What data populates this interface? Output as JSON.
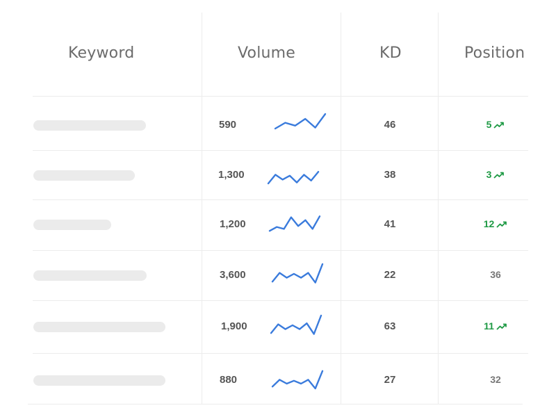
{
  "table": {
    "columns": {
      "keyword": "Keyword",
      "volume": "Volume",
      "kd": "KD",
      "position": "Position"
    },
    "rows": [
      {
        "volume": "590",
        "trend": [
          0.25,
          0.55,
          0.4,
          0.75,
          0.3,
          1.0
        ],
        "kd": "46",
        "position": "5",
        "position_trend": "up",
        "keyword_bar_fraction": 0.85
      },
      {
        "volume": "1,300",
        "trend": [
          0.0,
          0.45,
          0.2,
          0.4,
          0.05,
          0.45,
          0.15,
          0.6
        ],
        "kd": "38",
        "position": "3",
        "position_trend": "up",
        "keyword_bar_fraction": 0.77
      },
      {
        "volume": "1,200",
        "trend": [
          0.1,
          0.3,
          0.2,
          0.8,
          0.35,
          0.65,
          0.2,
          0.85
        ],
        "kd": "41",
        "position": "12",
        "position_trend": "up",
        "keyword_bar_fraction": 0.59
      },
      {
        "volume": "3,600",
        "trend": [
          0.1,
          0.55,
          0.3,
          0.5,
          0.3,
          0.55,
          0.05,
          1.0
        ],
        "kd": "22",
        "position": "36",
        "position_trend": "none",
        "keyword_bar_fraction": 0.86
      },
      {
        "volume": "1,900",
        "trend": [
          0.1,
          0.55,
          0.3,
          0.5,
          0.3,
          0.6,
          0.05,
          1.0
        ],
        "kd": "63",
        "position": "11",
        "position_trend": "up",
        "keyword_bar_fraction": 1.0
      },
      {
        "volume": "880",
        "trend": [
          0.1,
          0.45,
          0.25,
          0.4,
          0.25,
          0.45,
          0.0,
          0.9
        ],
        "kd": "27",
        "position": "32",
        "position_trend": "none",
        "keyword_bar_fraction": 1.0
      }
    ]
  },
  "colors": {
    "sparkline": "#3a7bdc",
    "trend_up": "#1f9a45",
    "placeholder_bar": "#ebebeb",
    "divider": "#ececec"
  },
  "icons": {
    "trend_up": "trending-up-icon"
  }
}
